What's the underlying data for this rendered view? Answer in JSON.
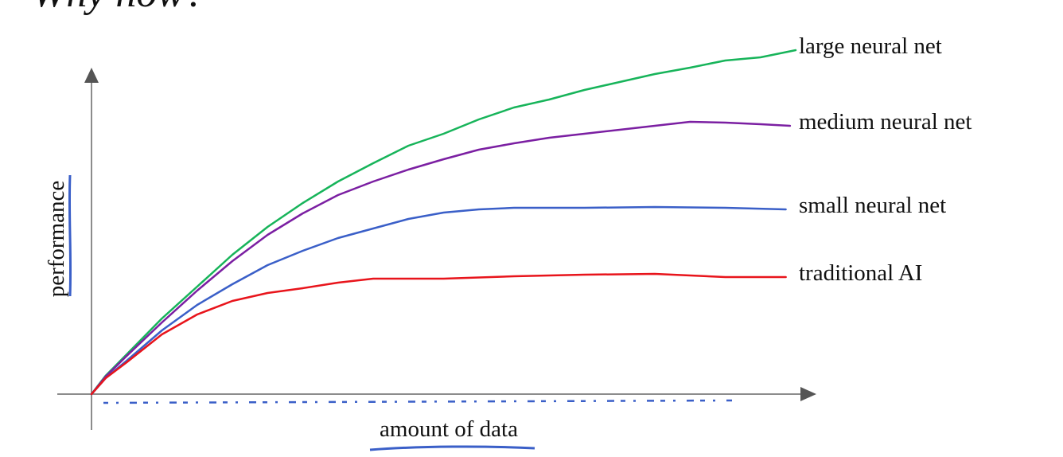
{
  "chart_data": {
    "type": "line",
    "title": "Why now?",
    "x_label": "amount of data",
    "y_label": "performance",
    "xlim": [
      0,
      100
    ],
    "ylim": [
      0,
      110
    ],
    "series": [
      {
        "name": "large neural net",
        "color": "#17b45a",
        "x": [
          0,
          2,
          5,
          10,
          15,
          20,
          25,
          30,
          35,
          40,
          45,
          50,
          55,
          60,
          65,
          70,
          75,
          80,
          85,
          90,
          95,
          100
        ],
        "values": [
          0,
          5.75,
          12.5,
          23.75,
          33.75,
          43.75,
          52.5,
          60,
          66.75,
          72.5,
          78,
          81.75,
          86.25,
          90,
          92.5,
          95.5,
          98,
          100.5,
          102.5,
          104.75,
          105.75,
          108
        ]
      },
      {
        "name": "medium neural net",
        "color": "#7b1fa2",
        "x": [
          0,
          2,
          5,
          10,
          15,
          20,
          25,
          30,
          35,
          40,
          45,
          50,
          55,
          60,
          65,
          70,
          75,
          80,
          85,
          90,
          95,
          99.2
        ],
        "values": [
          0,
          5.5,
          12,
          22.5,
          32.5,
          41.75,
          50,
          56.75,
          62.5,
          66.75,
          70.5,
          73.75,
          76.75,
          78.75,
          80.5,
          81.75,
          83,
          84.25,
          85.5,
          85.25,
          84.75,
          84.25
        ]
      },
      {
        "name": "small neural net",
        "color": "#3a5fc8",
        "x": [
          0,
          2,
          5,
          10,
          15,
          20,
          25,
          30,
          35,
          40,
          45,
          50,
          55,
          60,
          70,
          80,
          90,
          98.6
        ],
        "values": [
          0,
          5,
          10.5,
          20,
          28,
          34.5,
          40.5,
          45,
          49,
          52,
          55,
          57,
          58,
          58.5,
          58.5,
          58.75,
          58.5,
          58
        ]
      },
      {
        "name": "traditional AI",
        "color": "#e8141b",
        "x": [
          0,
          2,
          5,
          10,
          15,
          20,
          25,
          30,
          35,
          40,
          50,
          60,
          70,
          80,
          90,
          98.6
        ],
        "values": [
          0,
          5,
          10,
          18.75,
          25,
          29.25,
          31.75,
          33.25,
          35,
          36.25,
          36.25,
          37,
          37.5,
          37.75,
          36.75,
          36.75
        ]
      }
    ]
  }
}
